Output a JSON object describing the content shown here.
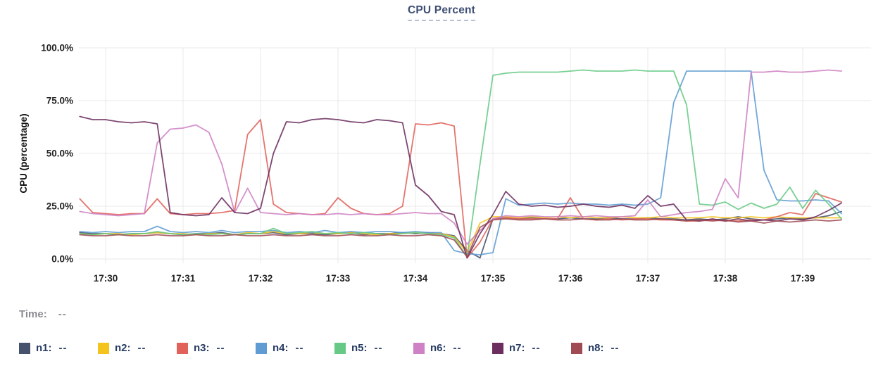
{
  "title": "CPU Percent",
  "time_row": {
    "label": "Time:",
    "value": "--"
  },
  "chart_data": {
    "type": "line",
    "title": "CPU Percent",
    "xlabel": "",
    "ylabel": "CPU (percentage)",
    "ylim": [
      0,
      100
    ],
    "grid": true,
    "legend_position": "bottom",
    "y_ticks": [
      "0.0%",
      "25.0%",
      "50.0%",
      "75.0%",
      "100.0%"
    ],
    "y_tick_values": [
      0,
      25,
      50,
      75,
      100
    ],
    "x_ticks": [
      "17:30",
      "17:31",
      "17:32",
      "17:33",
      "17:34",
      "17:35",
      "17:36",
      "17:37",
      "17:38",
      "17:39"
    ],
    "start_time": "17:29:40",
    "interval_seconds": 10,
    "first_point_offset_seconds": -20,
    "series": [
      {
        "name": "n1",
        "legend_label": "n1:",
        "legend_value": "--",
        "color": "#46526c",
        "values": [
          12.5,
          12,
          12,
          11.5,
          12,
          12,
          12.5,
          12,
          11.5,
          12,
          12,
          12.5,
          11.5,
          12,
          12,
          12.5,
          11.5,
          12,
          12,
          11.5,
          12,
          12.5,
          11.5,
          12,
          12,
          12.5,
          12,
          12.5,
          12,
          11,
          4,
          0.5,
          19,
          19.5,
          19,
          19.5,
          19,
          19,
          19.5,
          19,
          19,
          19.5,
          19,
          19,
          19.5,
          19,
          19,
          18.5,
          19,
          18.5,
          19,
          20,
          19,
          18.5,
          19,
          19.5,
          19,
          19.5,
          20.5,
          22.5
        ]
      },
      {
        "name": "n2",
        "legend_label": "n2:",
        "legend_value": "--",
        "color": "#f5c31d",
        "values": [
          12,
          11.5,
          12,
          12,
          11.5,
          12,
          12.5,
          12,
          12,
          11.5,
          12,
          12,
          11.5,
          12.5,
          12,
          13,
          12,
          12,
          12.5,
          12,
          12,
          12.5,
          12,
          11.5,
          12,
          12,
          12.5,
          12,
          12,
          10.5,
          3,
          17,
          20,
          20,
          19.5,
          20,
          19.5,
          20,
          19.5,
          20,
          19.5,
          19.5,
          20,
          19.5,
          19.5,
          20,
          19.5,
          19.5,
          19.5,
          20,
          19.5,
          19.5,
          20,
          19.5,
          20,
          19.5,
          19.5,
          19.5,
          19.5,
          19.5
        ]
      },
      {
        "name": "n3",
        "legend_label": "n3:",
        "legend_value": "--",
        "color": "#e0625a",
        "values": [
          28.5,
          22,
          21.5,
          21,
          21.5,
          21.5,
          28.5,
          21.5,
          21,
          21.5,
          21.5,
          22,
          23,
          59,
          66,
          26,
          22,
          21.5,
          21,
          21.5,
          29,
          24,
          21.5,
          21,
          21.5,
          25,
          64,
          63.5,
          64.5,
          63,
          0.5,
          8,
          19,
          19.5,
          19,
          19,
          19,
          19,
          29,
          19,
          18.5,
          19,
          18.5,
          19,
          19,
          18.5,
          18.5,
          18,
          18,
          18.5,
          18,
          18,
          18.5,
          18.5,
          20,
          22,
          21,
          31,
          29,
          27
        ]
      },
      {
        "name": "n4",
        "legend_label": "n4:",
        "legend_value": "--",
        "color": "#5e9cd3",
        "values": [
          13,
          12.5,
          13,
          12.5,
          13,
          13,
          15.5,
          13,
          12.5,
          13,
          12.5,
          13.5,
          12.5,
          13,
          13,
          13.5,
          12.5,
          13,
          12.5,
          13.5,
          12.5,
          13,
          12.5,
          13,
          13,
          12.5,
          13,
          12.5,
          12.5,
          4,
          2.5,
          2,
          3,
          28.5,
          25.5,
          26,
          26.5,
          26,
          26.5,
          26,
          26,
          25.5,
          26,
          25.5,
          26,
          29,
          74,
          89,
          89,
          89,
          89,
          89,
          89,
          42,
          28,
          27.5,
          27.5,
          28,
          27.5,
          21.5
        ]
      },
      {
        "name": "n5",
        "legend_label": "n5:",
        "legend_value": "--",
        "color": "#66c985",
        "values": [
          12,
          11.5,
          12,
          11.5,
          12,
          12,
          13,
          12,
          11.5,
          12,
          11.5,
          12,
          11.5,
          12,
          12,
          14.5,
          12,
          12.5,
          13,
          12,
          12.5,
          12,
          12.5,
          12,
          11.5,
          12,
          12.5,
          12,
          11.5,
          10,
          1,
          45,
          87,
          88,
          88.5,
          88.5,
          88.5,
          88.5,
          89,
          89.5,
          89,
          89,
          89,
          89.5,
          89,
          89,
          89,
          73,
          26,
          25.5,
          27,
          23.5,
          26.5,
          24,
          26,
          34,
          24,
          32.5,
          26,
          19
        ]
      },
      {
        "name": "n6",
        "legend_label": "n6:",
        "legend_value": "--",
        "color": "#ce81c4",
        "values": [
          22.5,
          21.5,
          21,
          20.5,
          21,
          21.5,
          55,
          61.5,
          62,
          63.5,
          60,
          45,
          22,
          33.5,
          22,
          21.5,
          21,
          21.5,
          21,
          21,
          21.5,
          21,
          21.5,
          21,
          21,
          21.5,
          22,
          21.5,
          21.5,
          17,
          7,
          13.5,
          19,
          20.5,
          20,
          20.5,
          20,
          20,
          20.5,
          20,
          20.5,
          20,
          20,
          20.5,
          28,
          20,
          21,
          22,
          22.5,
          23.5,
          38,
          29,
          88.5,
          88.5,
          89,
          88.5,
          88.5,
          89,
          89.5,
          89
        ]
      },
      {
        "name": "n7",
        "legend_label": "n7:",
        "legend_value": "--",
        "color": "#6b2e5f",
        "values": [
          67.5,
          66,
          66,
          65,
          64.5,
          65,
          64,
          22,
          21,
          20.5,
          21,
          29,
          22,
          21.5,
          24,
          50,
          65,
          64.5,
          66,
          66.5,
          66,
          65,
          64.5,
          66,
          65.5,
          64.5,
          35,
          30,
          22.5,
          21,
          0.5,
          12,
          21,
          32,
          26,
          25,
          25.5,
          24.5,
          25,
          26,
          25,
          24.5,
          25.5,
          24,
          30,
          25,
          26,
          18.5,
          18,
          19,
          18,
          19,
          18,
          18.5,
          18,
          19,
          18.5,
          20,
          23,
          26.5
        ]
      },
      {
        "name": "n8",
        "legend_label": "n8:",
        "legend_value": "--",
        "color": "#a04b54",
        "values": [
          11.5,
          11,
          11,
          11.5,
          11,
          11,
          11.5,
          11,
          11,
          11.5,
          11,
          11,
          11.5,
          11,
          11,
          11.5,
          11,
          11,
          11.5,
          11,
          11,
          11.5,
          11,
          11,
          11.5,
          11,
          11,
          11.5,
          11,
          9,
          1,
          15,
          18.5,
          19,
          18.5,
          18.5,
          19,
          18.5,
          18.5,
          19,
          18.5,
          18.5,
          19,
          18.5,
          18.5,
          19,
          18.5,
          18,
          18.5,
          18,
          18.5,
          17.5,
          18,
          17,
          18,
          17.5,
          18,
          18.5,
          18,
          18.5
        ]
      }
    ]
  },
  "colors": {
    "title": "#3d4e74",
    "title_underline": "#b7c1d8",
    "grid": "#e8e8ea",
    "tick_text": "#222222",
    "time_label": "#8b8b92",
    "legend_text": "#273c63",
    "background": "#ffffff"
  }
}
